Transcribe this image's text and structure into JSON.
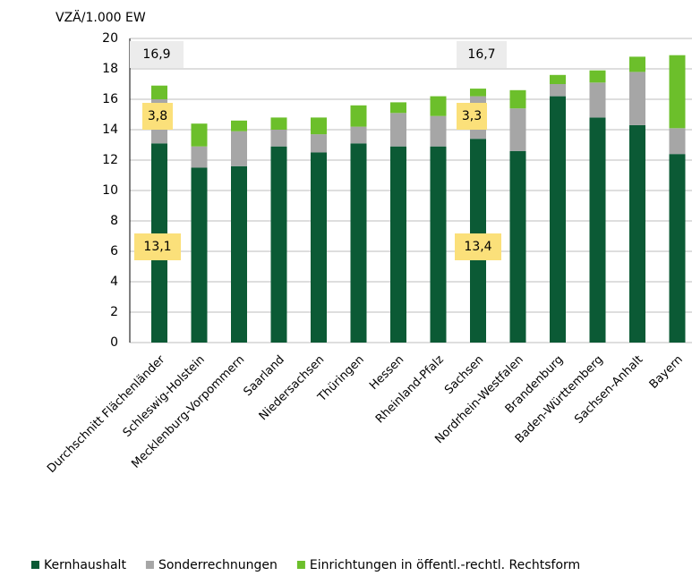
{
  "chart_data": {
    "type": "stacked_bar",
    "y_axis_label": "VZÄ/1.000 EW",
    "categories": [
      "Durchschnitt Flächenländer",
      "Schleswig-Holstein",
      "Mecklenburg-Vorpommern",
      "Saarland",
      "Niedersachsen",
      "Thüringen",
      "Hessen",
      "Rheinland-Pfalz",
      "Sachsen",
      "Nordrhein-Westfalen",
      "Brandenburg",
      "Baden-Württemberg",
      "Sachsen-Anhalt",
      "Bayern"
    ],
    "series": [
      {
        "name": "Kernhaushalt",
        "color": "#0b5a35",
        "values": [
          13.1,
          11.5,
          11.6,
          12.9,
          12.5,
          13.1,
          12.9,
          12.9,
          13.4,
          12.6,
          16.2,
          14.8,
          14.3,
          12.4
        ]
      },
      {
        "name": "Sonderrechnungen",
        "color": "#a6a6a6",
        "values": [
          2.9,
          1.4,
          2.3,
          1.1,
          1.2,
          1.1,
          2.2,
          2.0,
          2.8,
          2.8,
          0.8,
          2.3,
          3.5,
          1.7
        ]
      },
      {
        "name": "Einrichtungen in öffentl.-rechtl. Rechtsform",
        "color": "#6cbf2b",
        "values": [
          0.9,
          1.5,
          0.7,
          0.8,
          1.1,
          1.4,
          0.7,
          1.3,
          0.5,
          1.2,
          0.6,
          0.8,
          1.0,
          4.8
        ]
      }
    ],
    "annotations": [
      "16,9",
      "3,8",
      "13,1",
      "16,7",
      "3,3",
      "13,4"
    ],
    "ylim": [
      0,
      20
    ],
    "yticks": [
      0,
      2,
      4,
      6,
      8,
      10,
      12,
      14,
      16,
      18,
      20
    ],
    "grid": true,
    "legend": "bottom"
  }
}
